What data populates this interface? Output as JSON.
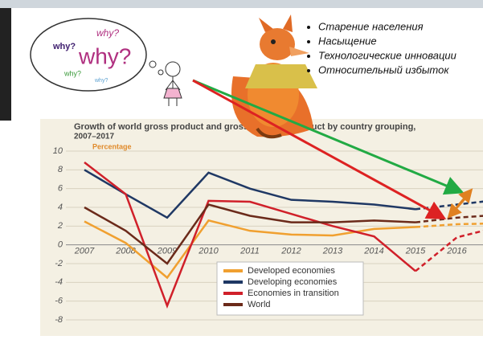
{
  "bullets": [
    "Старение населения",
    "Насыщение",
    "Технологические инновации",
    "Относительный избыток"
  ],
  "why_words": [
    "why?",
    "why?",
    "why?",
    "why?",
    "why?"
  ],
  "chart_data": {
    "type": "line",
    "title": "Growth of world gross product and gross domestic product by country grouping,",
    "subtitle": "2007–2017",
    "y_label": "Percentage",
    "categories": [
      "2007",
      "2008",
      "2009",
      "2010",
      "2011",
      "2012",
      "2013",
      "2014",
      "2015",
      "2016",
      null
    ],
    "forecast_start": "2015",
    "ylim": [
      -8,
      10
    ],
    "yticks": [
      10,
      8,
      6,
      4,
      2,
      0,
      -2,
      -4,
      -6,
      -8
    ],
    "grid": true,
    "series": [
      {
        "name": "Developed economies",
        "color": "#f0a030",
        "values": [
          2.5,
          0.2,
          -3.5,
          2.6,
          1.5,
          1.1,
          1.0,
          1.7,
          1.9,
          2.2,
          2.3
        ]
      },
      {
        "name": "Developing economies",
        "color": "#1f3864",
        "values": [
          8.0,
          5.4,
          2.9,
          7.7,
          6.0,
          4.8,
          4.6,
          4.3,
          3.8,
          4.3,
          4.8
        ]
      },
      {
        "name": "Economies in transition",
        "color": "#d0202a",
        "values": [
          8.8,
          5.4,
          -6.5,
          4.7,
          4.6,
          3.3,
          2.0,
          0.9,
          -2.8,
          0.8,
          1.9
        ]
      },
      {
        "name": "World",
        "color": "#6b2a1a",
        "values": [
          4.0,
          1.5,
          -2.0,
          4.3,
          3.1,
          2.4,
          2.4,
          2.6,
          2.4,
          2.9,
          3.2
        ]
      }
    ]
  }
}
